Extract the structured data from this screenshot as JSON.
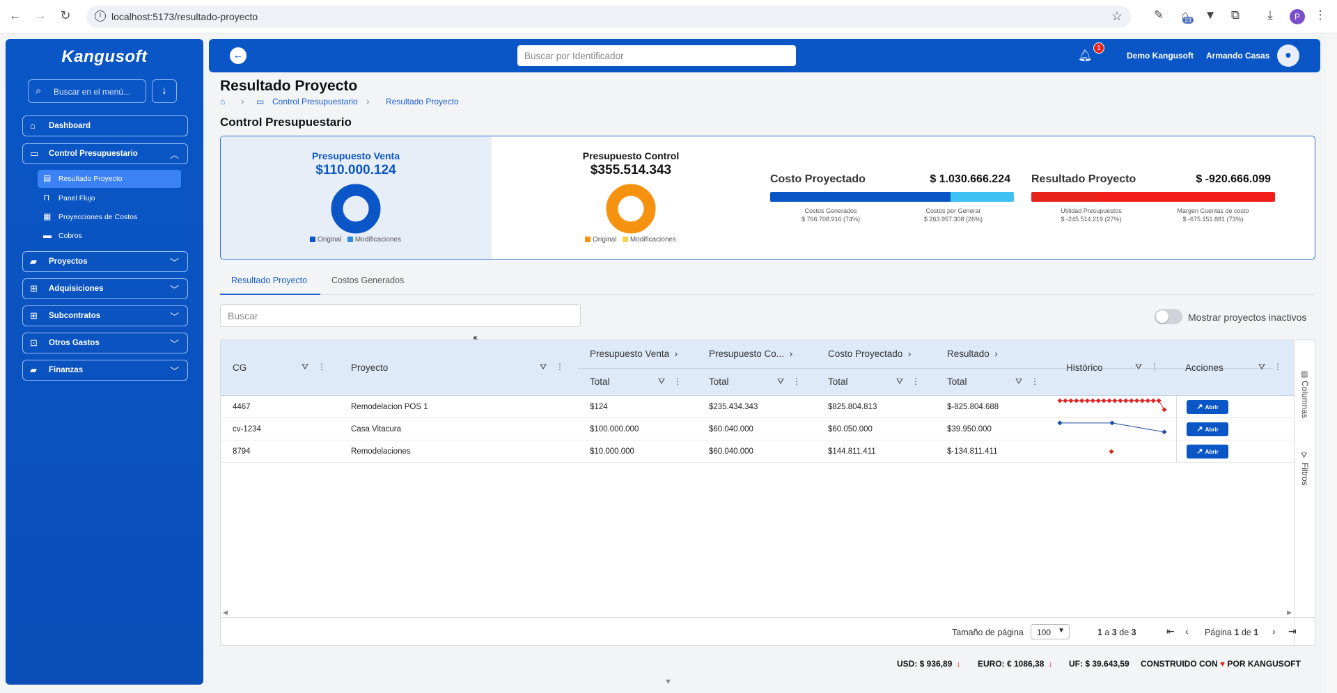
{
  "browser": {
    "url": "localhost:5173/resultado-proyecto",
    "ext_badge": "23",
    "profile_initial": "P"
  },
  "sidebar": {
    "logo": "Kangusoft",
    "search_placeholder": "Buscar en el menú...",
    "items": [
      {
        "label": "Dashboard",
        "icon": "home-icon"
      },
      {
        "label": "Control Presupuestario",
        "icon": "monitor-icon"
      },
      {
        "label": "Proyectos",
        "icon": "folder-icon"
      },
      {
        "label": "Adquisiciones",
        "icon": "sitemap-icon"
      },
      {
        "label": "Subcontratos",
        "icon": "sitemap-icon"
      },
      {
        "label": "Otros Gastos",
        "icon": "money-icon"
      },
      {
        "label": "Finanzas",
        "icon": "folder-icon"
      }
    ],
    "subitems": [
      {
        "label": "Resultado Proyecto",
        "icon": "document-icon"
      },
      {
        "label": "Panel Flujo",
        "icon": "flow-icon"
      },
      {
        "label": "Proyecciones de Costos",
        "icon": "chart-icon"
      },
      {
        "label": "Cobros",
        "icon": "card-icon"
      }
    ]
  },
  "header": {
    "search_placeholder": "Buscar por Identificador",
    "notification_count": "1",
    "company": "Demo Kangusoft",
    "user": "Armando Casas"
  },
  "page": {
    "title": "Resultado Proyecto",
    "breadcrumb": [
      "Control Presupuestario",
      "Resultado Proyecto"
    ],
    "section_title": "Control Presupuestario"
  },
  "summary": {
    "venta": {
      "label": "Presupuesto Venta",
      "value": "$110.000.124",
      "original_fraction": 1.0,
      "color": "#0a56c7"
    },
    "control": {
      "label": "Presupuesto Control",
      "value": "$355.514.343",
      "original_fraction": 1.0,
      "color": "#f59310"
    },
    "legend_original": "Original",
    "legend_modificaciones": "Modificaciones",
    "costo": {
      "title": "Costo Proyectado",
      "value": "$ 1.030.666.224",
      "left_label": "Costos Generados",
      "left_value": "$ 766.708.916 (74%)",
      "left_fraction": 0.74,
      "right_label": "Costos por Generar",
      "right_value": "$ 263.957.308 (26%)"
    },
    "resultado": {
      "title": "Resultado Proyecto",
      "value": "$ -920.666.099",
      "left_label": "Utilidad Presupuestos",
      "left_value": "$ -245.514.219 (27%)",
      "left_fraction": 0.27,
      "right_label": "Margen Cuentas de costo",
      "right_value": "$ -675.151.881 (73%)"
    }
  },
  "tabs": [
    "Resultado Proyecto",
    "Costos Generados"
  ],
  "grid": {
    "search_placeholder": "Buscar",
    "inactive_label": "Mostrar proyectos inactivos",
    "headers": {
      "cg": "CG",
      "proyecto": "Proyecto",
      "venta": "Presupuesto Venta",
      "control": "Presupuesto Co...",
      "costo": "Costo Proyectado",
      "resultado": "Resultado",
      "total": "Total",
      "historico": "Histórico",
      "acciones": "Acciones"
    },
    "rows": [
      {
        "cg": "4467",
        "proyecto": "Remodelacion POS 1",
        "venta": "$124",
        "control": "$235.434.343",
        "costo": "$825.804.813",
        "resultado": "$-825.804.688",
        "history": [
          0.85,
          0.85,
          0.85,
          0.85,
          0.85,
          0.85,
          0.85,
          0.85,
          0.85,
          0.85,
          0.85,
          0.85,
          0.85,
          0.85,
          0.85,
          0.85,
          0.85,
          0.85,
          0.85,
          0.35
        ],
        "hist_color": "#e02424"
      },
      {
        "cg": "cv-1234",
        "proyecto": "Casa Vitacura",
        "venta": "$100.000.000",
        "control": "$60.040.000",
        "costo": "$60.050.000",
        "resultado": "$39.950.000",
        "history": [
          0.85,
          0.85,
          0.35
        ],
        "hist_color": "#1f4fa0"
      },
      {
        "cg": "8794",
        "proyecto": "Remodelaciones",
        "venta": "$10.000.000",
        "control": "$60.040.000",
        "costo": "$144.811.411",
        "resultado": "$-134.811.411",
        "history": [
          0.5
        ],
        "hist_color": "#e02424"
      }
    ],
    "action_label": "Abrir",
    "side_columns": "Columnas",
    "side_filters": "Filtros",
    "footer": {
      "page_size_label": "Tamaño de página",
      "page_size": "100",
      "range_from": "1",
      "range_to": "3",
      "range_total": "3",
      "page_label": "Página",
      "page_current": "1",
      "page_of": "de",
      "page_total": "1"
    }
  },
  "status": {
    "usd": "USD: $ 936,89",
    "euro": "EURO: € 1086,38",
    "uf": "UF: $ 39.643,59",
    "built_prefix": "CONSTRUIDO CON",
    "built_suffix": "POR KANGUSOFT"
  }
}
